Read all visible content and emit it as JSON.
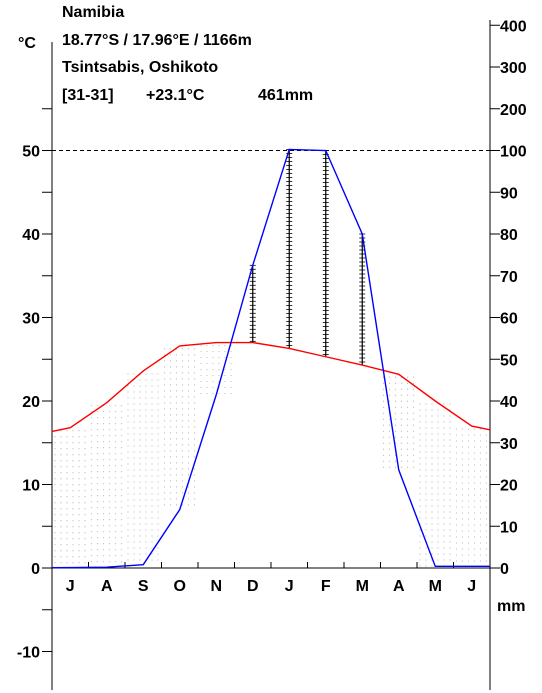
{
  "header": {
    "country": "Namibia",
    "coords": "18.77°S / 17.96°E / 1166m",
    "station": "Tsintsabis, Oshikoto",
    "summary_period": "[31-31]",
    "summary_temp": "+23.1°C",
    "summary_precip": "461mm"
  },
  "colors": {
    "temperature": "#ff0000",
    "precipitation": "#0000ff",
    "grid": "#000000"
  },
  "chart_data": {
    "type": "line",
    "categories": [
      "J",
      "A",
      "S",
      "O",
      "N",
      "D",
      "J",
      "F",
      "M",
      "A",
      "M",
      "J"
    ],
    "left_axis": {
      "unit": "°C",
      "ylim": [
        -15,
        60
      ],
      "ticks": [
        "50",
        "40",
        "30",
        "20",
        "10",
        "0",
        "-10"
      ]
    },
    "right_axis": {
      "unit": "mm",
      "ylim": [
        0,
        400
      ],
      "ticks": [
        "400",
        "300",
        "200",
        "100",
        "90",
        "80",
        "70",
        "60",
        "50",
        "40",
        "30",
        "20",
        "10",
        "0"
      ]
    },
    "series": [
      {
        "values": [
          16.8,
          19.8,
          23.6,
          26.6,
          27.0,
          27.0,
          26.3,
          25.3,
          24.3,
          23.2,
          20.0,
          17.0
        ]
      },
      {
        "values": [
          0.1,
          0.2,
          0.8,
          14.0,
          41.5,
          72.5,
          102.5,
          100.0,
          80.0,
          23.5,
          0.4,
          0.4
        ]
      }
    ],
    "reference_line": {
      "temp": 50,
      "precip": 100,
      "style": "dashed"
    },
    "grid": false
  }
}
